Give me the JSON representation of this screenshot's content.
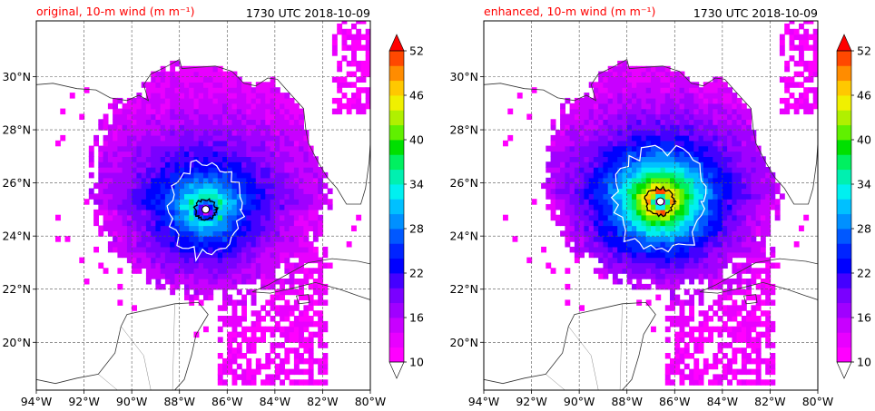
{
  "colors": {
    "title_accent": "#ff0000",
    "land_edge": "#333333",
    "grid": "#555555",
    "contour_white": "#ffffff",
    "contour_black": "#000000"
  },
  "chart_data": [
    {
      "type": "heatmap",
      "title_left": "original, 10-m wind (m m⁻¹)",
      "title_right": "1730 UTC 2018-10-09",
      "xlim": [
        -94,
        -80
      ],
      "ylim": [
        18.2,
        32.1
      ],
      "xticks": [
        -94,
        -92,
        -90,
        -88,
        -86,
        -84,
        -82,
        -80
      ],
      "xtick_labels": [
        "94°W",
        "92°W",
        "90°W",
        "88°W",
        "86°W",
        "84°W",
        "82°W",
        "80°W"
      ],
      "yticks": [
        20,
        22,
        24,
        26,
        28,
        30
      ],
      "ytick_labels": [
        "20°N",
        "22°N",
        "24°N",
        "26°N",
        "28°N",
        "30°N"
      ],
      "grid": true,
      "storm_center": [
        -86.9,
        25.0
      ],
      "max_wind_approx": 36,
      "colorbar": {
        "min": 10,
        "max": 52,
        "step": 2,
        "tick_values": [
          10,
          16,
          22,
          28,
          34,
          40,
          46,
          52
        ],
        "tick_labels": [
          "10",
          "16",
          "22",
          "28",
          "34",
          "40",
          "46",
          "52"
        ],
        "extend": "both"
      }
    },
    {
      "type": "heatmap",
      "title_left": "enhanced, 10-m wind (m m⁻¹)",
      "title_right": "1730 UTC 2018-10-09",
      "xlim": [
        -94,
        -80
      ],
      "ylim": [
        18.2,
        32.1
      ],
      "xticks": [
        -94,
        -92,
        -90,
        -88,
        -86,
        -84,
        -82,
        -80
      ],
      "xtick_labels": [
        "94°W",
        "92°W",
        "90°W",
        "88°W",
        "86°W",
        "84°W",
        "82°W",
        "80°W"
      ],
      "yticks": [
        20,
        22,
        24,
        26,
        28,
        30
      ],
      "ytick_labels": [
        "20°N",
        "22°N",
        "24°N",
        "26°N",
        "28°N",
        "30°N"
      ],
      "grid": true,
      "storm_center": [
        -86.6,
        25.3
      ],
      "max_wind_approx": 52,
      "colorbar": {
        "min": 10,
        "max": 52,
        "step": 2,
        "tick_values": [
          10,
          16,
          22,
          28,
          34,
          40,
          46,
          52
        ],
        "tick_labels": [
          "10",
          "16",
          "22",
          "28",
          "34",
          "40",
          "46",
          "52"
        ],
        "extend": "both"
      }
    }
  ]
}
